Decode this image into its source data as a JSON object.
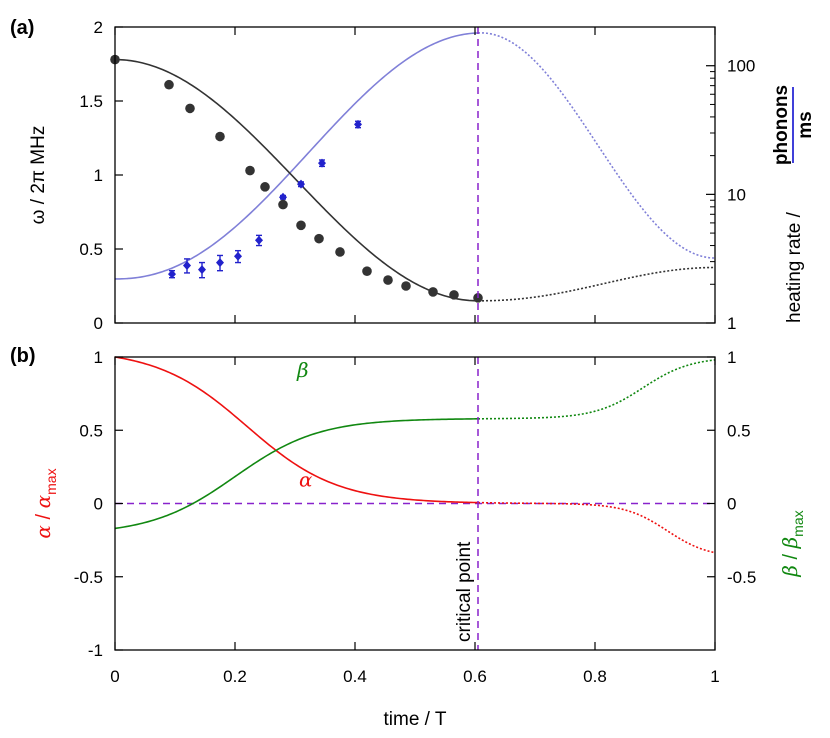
{
  "figure": {
    "panel_a_label": "(a)",
    "panel_b_label": "(b)",
    "annotation": "critical point"
  },
  "colors": {
    "omega": "#333333",
    "heating_data": "#2222cc",
    "heating_fit": "#8080d8",
    "heating_axis": "#0000cc",
    "alpha": "#ee1111",
    "beta": "#118811",
    "marker": "#8822cc"
  },
  "chart_data": [
    {
      "id": "a",
      "type": "line",
      "title": "(a)",
      "xlabel": "time / T",
      "ylabel": "ω / 2π MHz",
      "y2label": "heating rate / phonons / ms",
      "y2label_parts": {
        "prefix": "heating rate / ",
        "numerator": "phonons",
        "denominator": "ms"
      },
      "xlim": [
        0,
        1
      ],
      "ylim": [
        0,
        2
      ],
      "y2lim": [
        1,
        200
      ],
      "y2scale": "log",
      "xticks": [
        "0",
        "0.2",
        "0.4",
        "0.6",
        "0.8",
        "1"
      ],
      "yticks": [
        "0",
        "0.5",
        "1",
        "1.5",
        "2"
      ],
      "y2ticks": [
        "1",
        "10",
        "100"
      ],
      "critical_x": 0.605,
      "omega_points": {
        "x": [
          0,
          0.09,
          0.125,
          0.175,
          0.225,
          0.25,
          0.28,
          0.31,
          0.34,
          0.375,
          0.42,
          0.455,
          0.485,
          0.53,
          0.565,
          0.605
        ],
        "y": [
          1.78,
          1.61,
          1.45,
          1.26,
          1.03,
          0.92,
          0.8,
          0.66,
          0.57,
          0.48,
          0.35,
          0.29,
          0.25,
          0.21,
          0.19,
          0.17
        ]
      },
      "heating_points": {
        "x": [
          0.095,
          0.12,
          0.145,
          0.175,
          0.205,
          0.24,
          0.28,
          0.31,
          0.345,
          0.405
        ],
        "y": [
          2.4,
          2.8,
          2.6,
          2.95,
          3.3,
          4.4,
          9.5,
          12,
          17.5,
          35
        ],
        "err": [
          0.15,
          0.35,
          0.35,
          0.4,
          0.35,
          0.4,
          0.3,
          0.5,
          1.0,
          2.0
        ]
      },
      "omega_fit": {
        "start": 1.78,
        "end": 0.15,
        "solid_until": 0.605,
        "ends_at": 0.375
      },
      "heating_fit": {
        "start": 2.2,
        "peak": 180,
        "peak_at": 0.61,
        "solid_until": 0.605,
        "ends_at": 3.2
      },
      "series": [
        {
          "name": "ω / 2π",
          "axis": "left",
          "style": "solid then dotted"
        },
        {
          "name": "heating rate",
          "axis": "right",
          "style": "solid then dotted"
        }
      ]
    },
    {
      "id": "b",
      "type": "line",
      "title": "(b)",
      "xlabel": "time / T",
      "ylabel": "α / α_max",
      "y2label": "β / β_max",
      "ylabel_parts": {
        "sym": "α",
        "sub": "max"
      },
      "y2label_parts": {
        "sym": "β",
        "sub": "max"
      },
      "xlim": [
        0,
        1
      ],
      "ylim": [
        -1,
        1
      ],
      "xticks": [
        "0",
        "0.2",
        "0.4",
        "0.6",
        "0.8",
        "1"
      ],
      "yticks": [
        "-1",
        "-0.5",
        "0",
        "0.5",
        "1"
      ],
      "y2ticks": [
        "-0.5",
        "0",
        "0.5",
        "1"
      ],
      "critical_x": 0.605,
      "zero_line": 0,
      "series": [
        {
          "name": "α",
          "label": "α",
          "label_at": [
            0.39,
            0.13
          ],
          "start": 1.0,
          "plateau": 0.0,
          "end": -0.37
        },
        {
          "name": "β",
          "label": "β",
          "label_at": [
            0.39,
            0.66
          ],
          "start": -0.17,
          "plateau": 0.58,
          "end": 1.0
        }
      ]
    }
  ]
}
